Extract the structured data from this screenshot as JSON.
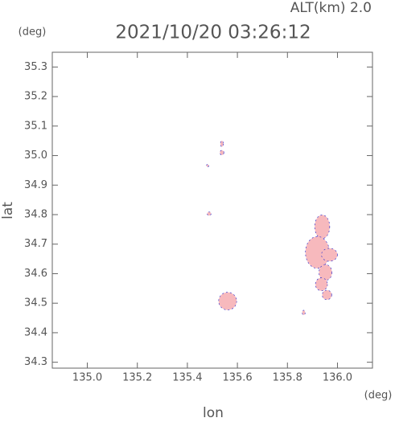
{
  "chart_data": {
    "type": "scatter",
    "title": "2021/10/20 03:26:12",
    "subtitle": "ALT(km) 2.0",
    "y_unit": "(deg)",
    "x_unit": "(deg)",
    "x_label": "lon",
    "y_label": "lat",
    "xlim": [
      134.86,
      136.14
    ],
    "ylim": [
      34.28,
      35.35
    ],
    "xticks": [
      {
        "value": 135,
        "label": "135.0"
      },
      135.2,
      135.4,
      135.6,
      135.8,
      {
        "value": 136,
        "label": "136.0"
      }
    ],
    "yticks": [
      34.3,
      34.4,
      34.5,
      34.6,
      34.7,
      34.8,
      34.9,
      {
        "value": 35,
        "label": "35.0"
      },
      35.1,
      35.2,
      35.3
    ],
    "color": "#f7b9bd",
    "edge_color": "#3a3ad0",
    "x": [
      135.939,
      135.92,
      135.968,
      135.952,
      135.936,
      135.958,
      135.561,
      135.538,
      135.538,
      135.481,
      135.487,
      135.865
    ],
    "values": [
      34.759,
      34.672,
      34.664,
      34.604,
      34.564,
      34.528,
      34.507,
      35.04,
      35.01,
      34.966,
      34.803,
      34.468
    ],
    "rx": [
      0.03,
      0.048,
      0.032,
      0.026,
      0.024,
      0.019,
      0.036,
      0.006,
      0.008,
      0.005,
      0.008,
      0.006
    ],
    "ry": [
      0.04,
      0.054,
      0.022,
      0.027,
      0.022,
      0.016,
      0.03,
      0.01,
      0.008,
      0.004,
      0.006,
      0.008
    ]
  }
}
